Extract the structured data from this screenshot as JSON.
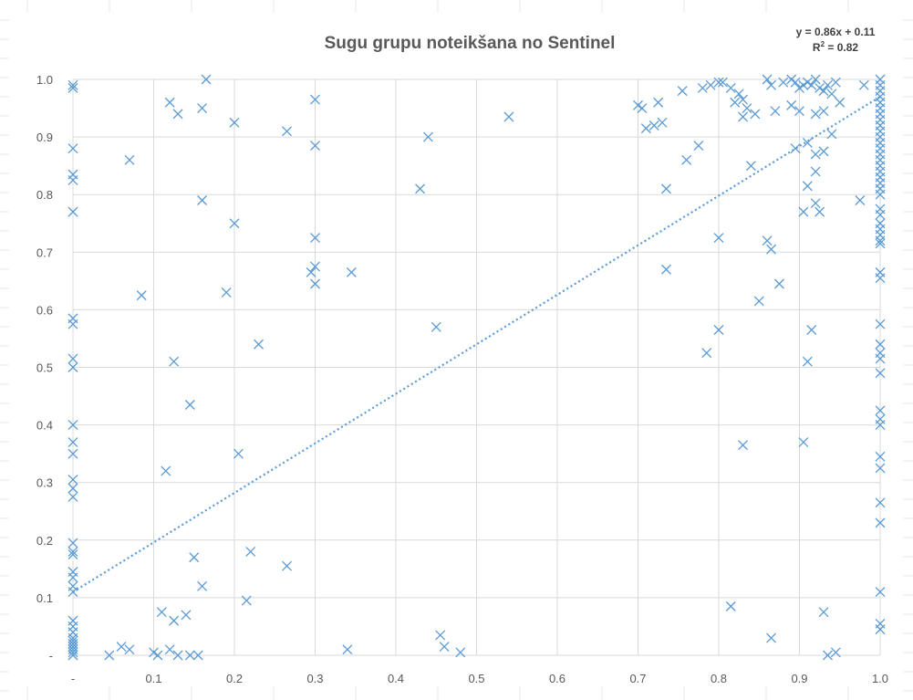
{
  "chart_data": {
    "type": "scatter",
    "title": "Sugu grupu noteikšana no Sentinel",
    "xlabel": "",
    "ylabel": "",
    "xlim": [
      0,
      1
    ],
    "ylim": [
      0,
      1
    ],
    "grid": true,
    "marker": "x",
    "series_color": "#5b9bd5",
    "gridline_color": "#d9d9d9",
    "x_tick_labels": [
      "-",
      "0.1",
      "0.2",
      "0.3",
      "0.4",
      "0.5",
      "0.6",
      "0.7",
      "0.8",
      "0.9",
      "1.0"
    ],
    "y_tick_labels": [
      "-",
      "0.1",
      "0.2",
      "0.3",
      "0.4",
      "0.5",
      "0.6",
      "0.7",
      "0.8",
      "0.9",
      "1.0"
    ],
    "trendline": {
      "type": "linear",
      "slope": 0.86,
      "intercept": 0.11,
      "r2": 0.82,
      "equation_label": "y = 0.86x + 0.11",
      "r2_label_prefix": "R",
      "r2_label_sup": "2",
      "r2_label_suffix": " = 0.82"
    },
    "points": [
      [
        0,
        0.99
      ],
      [
        0,
        0.985
      ],
      [
        0,
        0.88
      ],
      [
        0,
        0.835
      ],
      [
        0,
        0.825
      ],
      [
        0,
        0.77
      ],
      [
        0,
        0.585
      ],
      [
        0,
        0.575
      ],
      [
        0,
        0.515
      ],
      [
        0,
        0.5
      ],
      [
        0,
        0.4
      ],
      [
        0,
        0.37
      ],
      [
        0,
        0.35
      ],
      [
        0,
        0.305
      ],
      [
        0,
        0.29
      ],
      [
        0,
        0.275
      ],
      [
        0,
        0.195
      ],
      [
        0,
        0.18
      ],
      [
        0,
        0.175
      ],
      [
        0,
        0.145
      ],
      [
        0,
        0.135
      ],
      [
        0,
        0.12
      ],
      [
        0,
        0.11
      ],
      [
        0,
        0.06
      ],
      [
        0,
        0.05
      ],
      [
        0,
        0.04
      ],
      [
        0,
        0.03
      ],
      [
        0,
        0.025
      ],
      [
        0,
        0.02
      ],
      [
        0,
        0.015
      ],
      [
        0,
        0.01
      ],
      [
        0,
        0.005
      ],
      [
        0,
        0.0
      ],
      [
        0.07,
        0.86
      ],
      [
        0.085,
        0.625
      ],
      [
        0.12,
        0.96
      ],
      [
        0.13,
        0.94
      ],
      [
        0.16,
        0.95
      ],
      [
        0.165,
        1.0
      ],
      [
        0.16,
        0.79
      ],
      [
        0.125,
        0.51
      ],
      [
        0.145,
        0.435
      ],
      [
        0.115,
        0.32
      ],
      [
        0.15,
        0.17
      ],
      [
        0.16,
        0.12
      ],
      [
        0.11,
        0.075
      ],
      [
        0.125,
        0.06
      ],
      [
        0.14,
        0.07
      ],
      [
        0.12,
        0.01
      ],
      [
        0.13,
        0.0
      ],
      [
        0.145,
        0.0
      ],
      [
        0.155,
        0.0
      ],
      [
        0.1,
        0.005
      ],
      [
        0.105,
        0.0
      ],
      [
        0.06,
        0.015
      ],
      [
        0.07,
        0.01
      ],
      [
        0.045,
        0.0
      ],
      [
        0.2,
        0.925
      ],
      [
        0.2,
        0.75
      ],
      [
        0.19,
        0.63
      ],
      [
        0.23,
        0.54
      ],
      [
        0.205,
        0.35
      ],
      [
        0.22,
        0.18
      ],
      [
        0.215,
        0.095
      ],
      [
        0.265,
        0.91
      ],
      [
        0.265,
        0.155
      ],
      [
        0.3,
        0.965
      ],
      [
        0.3,
        0.885
      ],
      [
        0.3,
        0.725
      ],
      [
        0.3,
        0.675
      ],
      [
        0.295,
        0.665
      ],
      [
        0.3,
        0.645
      ],
      [
        0.345,
        0.665
      ],
      [
        0.34,
        0.01
      ],
      [
        0.44,
        0.9
      ],
      [
        0.43,
        0.81
      ],
      [
        0.45,
        0.57
      ],
      [
        0.455,
        0.035
      ],
      [
        0.46,
        0.015
      ],
      [
        0.48,
        0.005
      ],
      [
        0.54,
        0.935
      ],
      [
        0.7,
        0.955
      ],
      [
        0.705,
        0.95
      ],
      [
        0.71,
        0.915
      ],
      [
        0.72,
        0.92
      ],
      [
        0.73,
        0.925
      ],
      [
        0.725,
        0.96
      ],
      [
        0.735,
        0.81
      ],
      [
        0.735,
        0.67
      ],
      [
        0.755,
        0.98
      ],
      [
        0.76,
        0.86
      ],
      [
        0.775,
        0.885
      ],
      [
        0.78,
        0.985
      ],
      [
        0.785,
        0.525
      ],
      [
        0.79,
        0.99
      ],
      [
        0.8,
        0.995
      ],
      [
        0.805,
        0.995
      ],
      [
        0.8,
        0.725
      ],
      [
        0.8,
        0.565
      ],
      [
        0.815,
        0.985
      ],
      [
        0.82,
        0.96
      ],
      [
        0.825,
        0.975
      ],
      [
        0.83,
        0.965
      ],
      [
        0.835,
        0.95
      ],
      [
        0.845,
        0.94
      ],
      [
        0.83,
        0.935
      ],
      [
        0.84,
        0.85
      ],
      [
        0.815,
        0.085
      ],
      [
        0.83,
        0.365
      ],
      [
        0.85,
        0.615
      ],
      [
        0.86,
        1.0
      ],
      [
        0.865,
        0.99
      ],
      [
        0.87,
        0.945
      ],
      [
        0.86,
        0.72
      ],
      [
        0.865,
        0.705
      ],
      [
        0.875,
        0.645
      ],
      [
        0.865,
        0.03
      ],
      [
        0.88,
        0.995
      ],
      [
        0.89,
        1.0
      ],
      [
        0.895,
        0.995
      ],
      [
        0.9,
        0.985
      ],
      [
        0.905,
        0.99
      ],
      [
        0.91,
        0.995
      ],
      [
        0.915,
        0.99
      ],
      [
        0.92,
        1.0
      ],
      [
        0.925,
        0.985
      ],
      [
        0.93,
        0.98
      ],
      [
        0.935,
        0.99
      ],
      [
        0.94,
        0.975
      ],
      [
        0.945,
        0.995
      ],
      [
        0.95,
        0.96
      ],
      [
        0.89,
        0.955
      ],
      [
        0.9,
        0.945
      ],
      [
        0.92,
        0.94
      ],
      [
        0.93,
        0.945
      ],
      [
        0.895,
        0.88
      ],
      [
        0.91,
        0.89
      ],
      [
        0.92,
        0.87
      ],
      [
        0.93,
        0.875
      ],
      [
        0.94,
        0.905
      ],
      [
        0.92,
        0.84
      ],
      [
        0.91,
        0.815
      ],
      [
        0.92,
        0.785
      ],
      [
        0.905,
        0.77
      ],
      [
        0.925,
        0.77
      ],
      [
        0.915,
        0.565
      ],
      [
        0.91,
        0.51
      ],
      [
        0.905,
        0.37
      ],
      [
        0.93,
        0.075
      ],
      [
        0.935,
        0.0
      ],
      [
        0.945,
        0.005
      ],
      [
        0.975,
        0.79
      ],
      [
        0.98,
        0.99
      ],
      [
        1.0,
        1.0
      ],
      [
        1.0,
        0.99
      ],
      [
        1.0,
        0.98
      ],
      [
        1.0,
        0.97
      ],
      [
        1.0,
        0.96
      ],
      [
        1.0,
        0.95
      ],
      [
        1.0,
        0.94
      ],
      [
        1.0,
        0.93
      ],
      [
        1.0,
        0.92
      ],
      [
        1.0,
        0.91
      ],
      [
        1.0,
        0.9
      ],
      [
        1.0,
        0.89
      ],
      [
        1.0,
        0.88
      ],
      [
        1.0,
        0.87
      ],
      [
        1.0,
        0.86
      ],
      [
        1.0,
        0.85
      ],
      [
        1.0,
        0.84
      ],
      [
        1.0,
        0.83
      ],
      [
        1.0,
        0.82
      ],
      [
        1.0,
        0.81
      ],
      [
        1.0,
        0.8
      ],
      [
        1.0,
        0.775
      ],
      [
        1.0,
        0.765
      ],
      [
        1.0,
        0.75
      ],
      [
        1.0,
        0.74
      ],
      [
        1.0,
        0.73
      ],
      [
        1.0,
        0.72
      ],
      [
        1.0,
        0.715
      ],
      [
        1.0,
        0.665
      ],
      [
        1.0,
        0.655
      ],
      [
        1.0,
        0.575
      ],
      [
        1.0,
        0.54
      ],
      [
        1.0,
        0.525
      ],
      [
        1.0,
        0.515
      ],
      [
        1.0,
        0.49
      ],
      [
        1.0,
        0.425
      ],
      [
        1.0,
        0.41
      ],
      [
        1.0,
        0.4
      ],
      [
        1.0,
        0.345
      ],
      [
        1.0,
        0.325
      ],
      [
        1.0,
        0.265
      ],
      [
        1.0,
        0.23
      ],
      [
        1.0,
        0.11
      ],
      [
        1.0,
        0.055
      ],
      [
        1.0,
        0.045
      ]
    ]
  }
}
